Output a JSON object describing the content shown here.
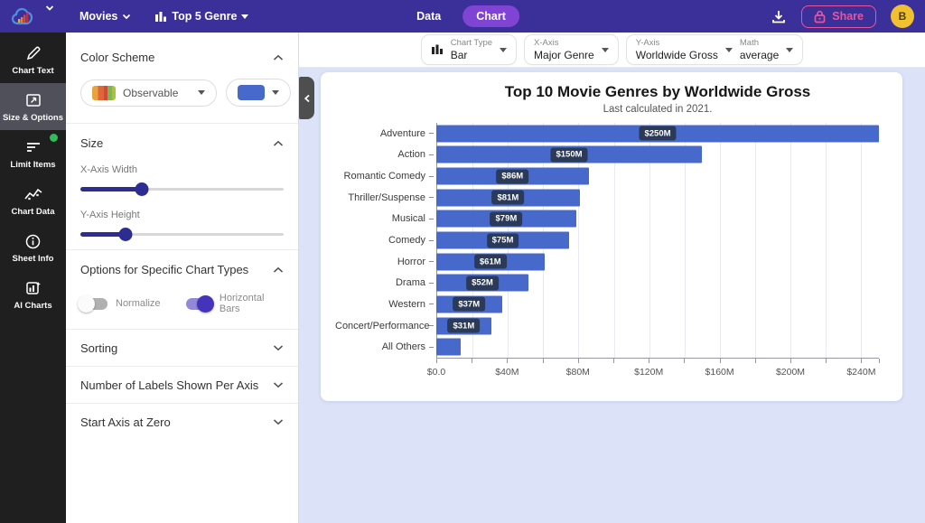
{
  "topbar": {
    "movies_label": "Movies",
    "dataset_label": "Top 5 Genre",
    "tabs": [
      {
        "label": "Data",
        "active": false
      },
      {
        "label": "Chart",
        "active": true
      }
    ],
    "share_label": "Share",
    "avatar_initial": "B"
  },
  "sidebar": {
    "items": [
      {
        "label": "Chart Text",
        "icon": "pencil-icon",
        "active": false,
        "badge": false
      },
      {
        "label": "Size & Options",
        "icon": "resize-icon",
        "active": true,
        "badge": false
      },
      {
        "label": "Limit Items",
        "icon": "filter-lines-icon",
        "active": false,
        "badge": true
      },
      {
        "label": "Chart Data",
        "icon": "line-chart-icon",
        "active": false,
        "badge": false
      },
      {
        "label": "Sheet Info",
        "icon": "info-icon",
        "active": false,
        "badge": false
      },
      {
        "label": "AI Charts",
        "icon": "ai-chart-icon",
        "active": false,
        "badge": false
      }
    ]
  },
  "panel": {
    "color_scheme": {
      "title": "Color Scheme",
      "scheme_value": "Observable",
      "selected_color": "#4769cb"
    },
    "size": {
      "title": "Size",
      "x_label": "X-Axis Width",
      "x_percent": 30,
      "y_label": "Y-Axis Height",
      "y_percent": 22
    },
    "chart_options": {
      "title": "Options for Specific Chart Types",
      "toggles": [
        {
          "label": "Normalize",
          "on": false
        },
        {
          "label": "Horizontal Bars",
          "on": true
        }
      ]
    },
    "collapsed_sections": [
      "Sorting",
      "Number of Labels Shown Per Axis",
      "Start Axis at Zero"
    ]
  },
  "toolbar": {
    "chart_type": {
      "label": "Chart Type",
      "value": "Bar"
    },
    "x_axis": {
      "label": "X-Axis",
      "value": "Major Genre"
    },
    "y_axis": {
      "label": "Y-Axis",
      "value": "Worldwide Gross"
    },
    "math": {
      "label": "Math",
      "value": "average"
    }
  },
  "chart_data": {
    "type": "bar",
    "orientation": "horizontal",
    "title": "Top 10 Movie Genres by Worldwide Gross",
    "subtitle": "Last calculated in 2021.",
    "categories": [
      "Adventure",
      "Action",
      "Romantic Comedy",
      "Thriller/Suspense",
      "Musical",
      "Comedy",
      "Horror",
      "Drama",
      "Western",
      "Concert/Performance",
      "All Others"
    ],
    "values": [
      250,
      150,
      86,
      81,
      79,
      75,
      61,
      52,
      37,
      31,
      14
    ],
    "bar_labels": [
      "$250M",
      "$150M",
      "$86M",
      "$81M",
      "$79M",
      "$75M",
      "$61M",
      "$52M",
      "$37M",
      "$31M",
      null
    ],
    "xlim": [
      0,
      250
    ],
    "tick_step": 20,
    "x_tick_labels": [
      "$0.0",
      "$40M",
      "$80M",
      "$120M",
      "$160M",
      "$200M",
      "$240M"
    ],
    "label_tick_step": 40,
    "grid": true,
    "legend": "none",
    "bar_color": "#4769cb",
    "badge_color": "#2b3a58"
  },
  "colors": {
    "topbar_bg": "#3b3099",
    "accent_purple": "#7f44d4",
    "share_pink": "#e8559f",
    "avatar_yellow": "#f0c030",
    "notification_green": "#2ebd59",
    "canvas_bg": "#dce3f8"
  }
}
